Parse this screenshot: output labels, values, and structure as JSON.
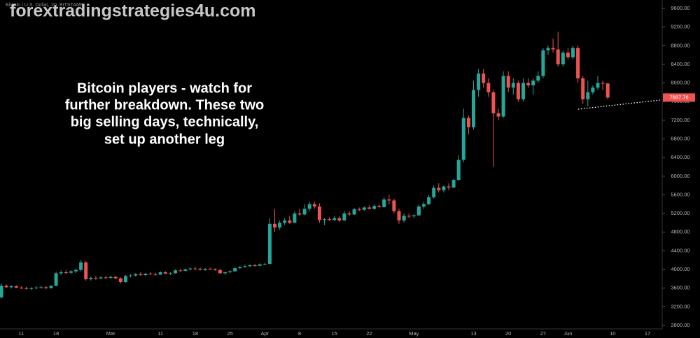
{
  "chart_data": {
    "type": "candlestick",
    "watermark": "forextradingstrategies4u.com",
    "symbol": "Bitcoin / U.S. Dollar, 1D, BITSTAMP",
    "annotation": [
      "Bitcoin players - watch for",
      "further breakdown.  These two",
      "big selling days, technically,",
      "set up another leg"
    ],
    "up_color": "#26a69a",
    "down_color": "#ef5350",
    "categories": [
      null,
      null,
      null,
      null,
      "11",
      null,
      null,
      null,
      null,
      null,
      null,
      "18",
      null,
      null,
      null,
      null,
      null,
      null,
      null,
      null,
      null,
      null,
      "Mar",
      null,
      null,
      null,
      null,
      null,
      null,
      null,
      null,
      null,
      "11",
      null,
      null,
      null,
      null,
      null,
      null,
      "18",
      null,
      null,
      null,
      null,
      null,
      null,
      "25",
      null,
      null,
      null,
      null,
      null,
      null,
      "Apr",
      null,
      null,
      null,
      null,
      null,
      null,
      "8",
      null,
      null,
      null,
      null,
      null,
      null,
      "15",
      null,
      null,
      null,
      null,
      null,
      null,
      "22",
      null,
      null,
      null,
      null,
      null,
      null,
      null,
      null,
      "May",
      null,
      null,
      null,
      null,
      null,
      null,
      null,
      null,
      null,
      null,
      null,
      "13",
      null,
      null,
      null,
      null,
      null,
      null,
      "20",
      null,
      null,
      null,
      null,
      null,
      null,
      "27",
      null,
      null,
      null,
      null,
      "Jun",
      null,
      null,
      null,
      null,
      null,
      null,
      null,
      null,
      "10",
      null,
      null,
      null,
      null,
      null,
      null,
      "17",
      null,
      null
    ],
    "open": [
      3400,
      3650,
      3620,
      3640,
      3610,
      3600,
      3590,
      3600,
      3610,
      3620,
      3600,
      3650,
      3920,
      3940,
      3930,
      3960,
      3990,
      4150,
      3790,
      3820,
      3810,
      3830,
      3820,
      3840,
      3810,
      3730,
      3860,
      3870,
      3900,
      3880,
      3910,
      3900,
      3890,
      3940,
      3910,
      3920,
      3980,
      3970,
      4000,
      4020,
      4010,
      3990,
      4010,
      4000,
      3990,
      3920,
      3940,
      3960,
      4030,
      4050,
      4070,
      4090,
      4080,
      4110,
      4120,
      4980,
      4900,
      5000,
      5050,
      5000,
      5200,
      5180,
      5300,
      5400,
      5350,
      5060,
      5080,
      5060,
      5100,
      5050,
      5200,
      5180,
      5290,
      5280,
      5330,
      5300,
      5360,
      5340,
      5500,
      5480,
      5250,
      5050,
      5150,
      5140,
      5160,
      5350,
      5400,
      5550,
      5750,
      5700,
      5780,
      5760,
      5920,
      6350,
      7250,
      7050,
      7850,
      8200,
      8000,
      7800,
      7350,
      7280,
      8150,
      7900,
      8000,
      7650,
      8000,
      7950,
      8050,
      8150,
      8700,
      8750,
      8720,
      8400,
      8650,
      8550,
      8750,
      8100,
      7650,
      7800,
      7900,
      8000,
      7990,
      null,
      null,
      null,
      null,
      null,
      null,
      null,
      null,
      null,
      null
    ],
    "high": [
      3700,
      3680,
      3660,
      3660,
      3640,
      3630,
      3620,
      3640,
      3650,
      3640,
      3660,
      3950,
      3980,
      3990,
      3980,
      4020,
      4200,
      4180,
      3850,
      3860,
      3850,
      3860,
      3870,
      3860,
      3830,
      3880,
      3900,
      3920,
      3940,
      3920,
      3940,
      3930,
      3960,
      3960,
      3940,
      4000,
      4010,
      4020,
      4050,
      4060,
      4040,
      4030,
      4040,
      4030,
      4010,
      3960,
      3980,
      4040,
      4080,
      4100,
      4110,
      4120,
      4130,
      4140,
      5100,
      5300,
      5050,
      5100,
      5150,
      5250,
      5300,
      5400,
      5450,
      5450,
      5420,
      5100,
      5120,
      5150,
      5140,
      5250,
      5250,
      5320,
      5330,
      5350,
      5380,
      5400,
      5400,
      5550,
      5600,
      5520,
      5300,
      5200,
      5200,
      5180,
      5400,
      5450,
      5600,
      5800,
      5850,
      5800,
      5850,
      5950,
      6450,
      7450,
      7300,
      8050,
      8300,
      8300,
      8100,
      7850,
      7450,
      8250,
      8250,
      8100,
      8050,
      8100,
      8100,
      8100,
      8250,
      8750,
      8800,
      8950,
      9100,
      8700,
      8750,
      8800,
      8800,
      8150,
      8050,
      7950,
      8150,
      8050,
      8000,
      null,
      null,
      null,
      null,
      null,
      null,
      null,
      null,
      null,
      null
    ],
    "low": [
      3380,
      3600,
      3590,
      3600,
      3580,
      3570,
      3560,
      3580,
      3590,
      3580,
      3590,
      3640,
      3880,
      3900,
      3900,
      3920,
      3960,
      3760,
      3760,
      3780,
      3790,
      3800,
      3800,
      3790,
      3700,
      3720,
      3830,
      3850,
      3870,
      3860,
      3880,
      3870,
      3880,
      3900,
      3880,
      3910,
      3950,
      3960,
      3980,
      3990,
      3980,
      3970,
      3990,
      3970,
      3900,
      3880,
      3920,
      3950,
      4010,
      4040,
      4050,
      4060,
      4070,
      4090,
      4110,
      4800,
      4850,
      4950,
      4980,
      4990,
      5150,
      5170,
      5250,
      5300,
      5000,
      4950,
      5040,
      5040,
      5020,
      5040,
      5150,
      5170,
      5250,
      5260,
      5290,
      5280,
      5310,
      5320,
      5400,
      5200,
      4980,
      5000,
      5100,
      5100,
      5150,
      5300,
      5380,
      5520,
      5650,
      5650,
      5700,
      5740,
      5900,
      6300,
      6900,
      7000,
      7700,
      7900,
      7700,
      6200,
      7200,
      7250,
      7800,
      7750,
      7600,
      7600,
      7900,
      7750,
      8000,
      8100,
      8600,
      8650,
      8350,
      8350,
      8500,
      8500,
      8000,
      7550,
      7500,
      7750,
      7850,
      7850,
      7650,
      null,
      null,
      null,
      null,
      null,
      null,
      null,
      null,
      null,
      null
    ],
    "close": [
      3650,
      3620,
      3640,
      3610,
      3600,
      3590,
      3600,
      3610,
      3620,
      3600,
      3650,
      3920,
      3940,
      3930,
      3960,
      3990,
      4150,
      3790,
      3820,
      3810,
      3830,
      3820,
      3840,
      3810,
      3730,
      3860,
      3870,
      3900,
      3880,
      3910,
      3900,
      3890,
      3940,
      3910,
      3920,
      3980,
      3970,
      4000,
      4020,
      4010,
      3990,
      4010,
      4000,
      3990,
      3920,
      3940,
      3960,
      4030,
      4050,
      4070,
      4090,
      4080,
      4110,
      4120,
      4980,
      4900,
      5000,
      5050,
      5000,
      5200,
      5180,
      5300,
      5400,
      5350,
      5060,
      5080,
      5060,
      5100,
      5050,
      5200,
      5180,
      5290,
      5280,
      5330,
      5300,
      5360,
      5340,
      5500,
      5480,
      5250,
      5050,
      5150,
      5140,
      5160,
      5350,
      5400,
      5550,
      5750,
      5700,
      5780,
      5760,
      5920,
      6350,
      7250,
      7050,
      7850,
      8200,
      8000,
      7800,
      7350,
      7280,
      8150,
      7900,
      8000,
      7650,
      8000,
      7950,
      8050,
      8150,
      8700,
      8750,
      8720,
      8400,
      8650,
      8550,
      8750,
      8100,
      7650,
      7800,
      7900,
      8000,
      7990,
      7687.76,
      null,
      null,
      null,
      null,
      null,
      null,
      null,
      null,
      null,
      null
    ],
    "ylim": [
      2725,
      9780
    ],
    "yticks": [
      {
        "value": 2800,
        "label": "2800.00"
      },
      {
        "value": 3200,
        "label": "3200.00"
      },
      {
        "value": 3600,
        "label": "3600.00"
      },
      {
        "value": 4000,
        "label": "4000.00"
      },
      {
        "value": 4400,
        "label": "4400.00"
      },
      {
        "value": 4800,
        "label": "4800.00"
      },
      {
        "value": 5200,
        "label": "5200.00"
      },
      {
        "value": 5600,
        "label": "5600.00"
      },
      {
        "value": 6000,
        "label": "6000.00"
      },
      {
        "value": 6400,
        "label": "6400.00"
      },
      {
        "value": 6800,
        "label": "6800.00"
      },
      {
        "value": 7200,
        "label": "7200.00"
      },
      {
        "value": 7600,
        "label": "7600.00"
      },
      {
        "value": 8000,
        "label": "8000.00"
      },
      {
        "value": 8400,
        "label": "8400.00"
      },
      {
        "value": 8800,
        "label": "8800.00"
      },
      {
        "value": 9200,
        "label": "9200.00"
      },
      {
        "value": 9600,
        "label": "9600.00"
      }
    ]
  }
}
